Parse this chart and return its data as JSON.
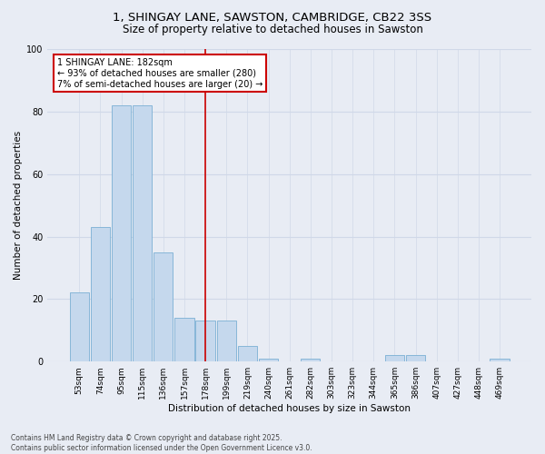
{
  "title": "1, SHINGAY LANE, SAWSTON, CAMBRIDGE, CB22 3SS",
  "subtitle": "Size of property relative to detached houses in Sawston",
  "xlabel": "Distribution of detached houses by size in Sawston",
  "ylabel": "Number of detached properties",
  "categories": [
    "53sqm",
    "74sqm",
    "95sqm",
    "115sqm",
    "136sqm",
    "157sqm",
    "178sqm",
    "199sqm",
    "219sqm",
    "240sqm",
    "261sqm",
    "282sqm",
    "303sqm",
    "323sqm",
    "344sqm",
    "365sqm",
    "386sqm",
    "407sqm",
    "427sqm",
    "448sqm",
    "469sqm"
  ],
  "values": [
    22,
    43,
    82,
    82,
    35,
    14,
    13,
    13,
    5,
    1,
    0,
    1,
    0,
    0,
    0,
    2,
    2,
    0,
    0,
    0,
    1
  ],
  "bar_color": "#c5d8ed",
  "bar_edge_color": "#7bafd4",
  "background_color": "#e8ecf4",
  "grid_color": "#d0d8e8",
  "vline_x_index": 6,
  "vline_color": "#cc0000",
  "annotation_text": "1 SHINGAY LANE: 182sqm\n← 93% of detached houses are smaller (280)\n7% of semi-detached houses are larger (20) →",
  "annotation_box_color": "#ffffff",
  "annotation_box_edge_color": "#cc0000",
  "footnote": "Contains HM Land Registry data © Crown copyright and database right 2025.\nContains public sector information licensed under the Open Government Licence v3.0.",
  "ylim": [
    0,
    100
  ],
  "yticks": [
    0,
    20,
    40,
    60,
    80,
    100
  ],
  "title_fontsize": 9.5,
  "subtitle_fontsize": 8.5,
  "label_fontsize": 7.5,
  "tick_fontsize": 6.5,
  "footnote_fontsize": 5.5,
  "annotation_fontsize": 7.0
}
